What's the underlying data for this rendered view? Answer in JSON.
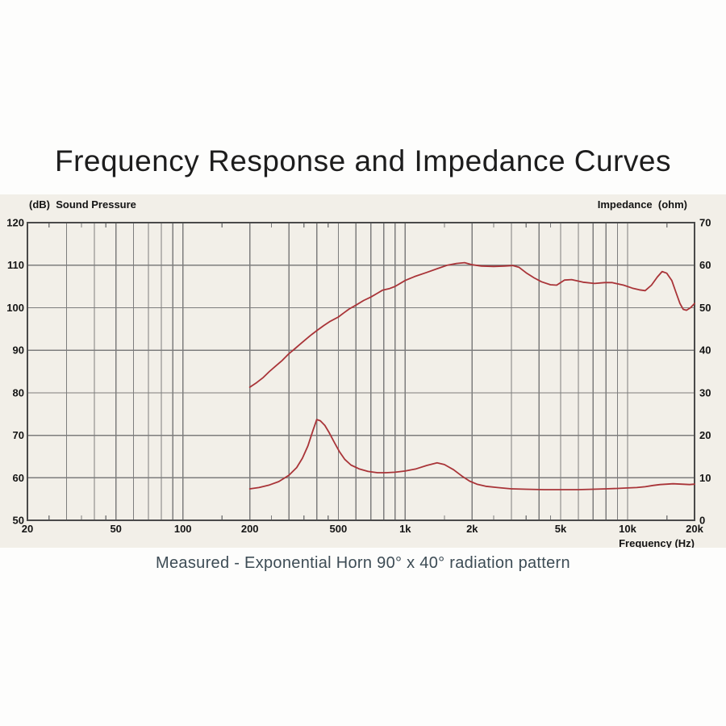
{
  "page_title": "Frequency Response and Impedance Curves",
  "caption": "Measured - Exponential Horn 90° x 40° radiation pattern",
  "colors": {
    "panel_bg": "#f2efe8",
    "curve": "#a93438",
    "grid": "#7d7d7d",
    "border": "#4a4a4a",
    "axis_text": "#141414",
    "title_text": "#1d1d1d",
    "caption_text": "#3d4c55"
  },
  "chart_data": {
    "type": "line",
    "title": "Frequency Response and Impedance Curves",
    "grid": "on",
    "legend": "none",
    "x_axis": {
      "title": "Frequency  (Hz)",
      "scale": "log",
      "min": 20,
      "max": 20000,
      "ticks": [
        {
          "f": 20,
          "label": "20"
        },
        {
          "f": 50,
          "label": "50"
        },
        {
          "f": 100,
          "label": "100"
        },
        {
          "f": 200,
          "label": "200"
        },
        {
          "f": 500,
          "label": "500"
        },
        {
          "f": 1000,
          "label": "1k"
        },
        {
          "f": 2000,
          "label": "2k"
        },
        {
          "f": 5000,
          "label": "5k"
        },
        {
          "f": 10000,
          "label": "10k"
        },
        {
          "f": 20000,
          "label": "20k"
        }
      ],
      "gridlines": [
        30,
        40,
        50,
        60,
        70,
        80,
        90,
        100,
        200,
        300,
        400,
        500,
        600,
        700,
        800,
        900,
        1000,
        2000,
        3000,
        4000,
        5000,
        6000,
        7000,
        8000,
        9000,
        10000
      ],
      "minor_ticks": [
        25,
        35,
        45,
        150,
        250,
        350,
        450,
        1500,
        2500,
        3500,
        4500,
        15000
      ]
    },
    "left_axis": {
      "header": "(dB)  Sound Pressure",
      "unit": "dB",
      "min": 50,
      "max": 120,
      "ticks": [
        120,
        110,
        100,
        90,
        80,
        70,
        60,
        50
      ]
    },
    "right_axis": {
      "header": "Impedance  (ohm)",
      "unit": "ohm",
      "min": 0,
      "max": 70,
      "ticks": [
        70,
        60,
        50,
        40,
        30,
        20,
        10,
        0
      ]
    },
    "series": [
      {
        "name": "sound-pressure-response",
        "axis": "left",
        "unit": "dB",
        "points": [
          [
            200,
            81.3
          ],
          [
            215,
            82.4
          ],
          [
            230,
            83.6
          ],
          [
            245,
            85.0
          ],
          [
            262,
            86.3
          ],
          [
            280,
            87.6
          ],
          [
            300,
            89.2
          ],
          [
            320,
            90.4
          ],
          [
            340,
            91.6
          ],
          [
            360,
            92.7
          ],
          [
            380,
            93.7
          ],
          [
            400,
            94.6
          ],
          [
            430,
            95.8
          ],
          [
            460,
            96.8
          ],
          [
            500,
            97.8
          ],
          [
            530,
            98.8
          ],
          [
            560,
            99.7
          ],
          [
            600,
            100.6
          ],
          [
            650,
            101.7
          ],
          [
            700,
            102.5
          ],
          [
            750,
            103.4
          ],
          [
            790,
            104.1
          ],
          [
            850,
            104.5
          ],
          [
            900,
            105.0
          ],
          [
            1000,
            106.4
          ],
          [
            1100,
            107.3
          ],
          [
            1250,
            108.3
          ],
          [
            1400,
            109.2
          ],
          [
            1550,
            110.0
          ],
          [
            1700,
            110.4
          ],
          [
            1850,
            110.6
          ],
          [
            2000,
            110.1
          ],
          [
            2200,
            109.8
          ],
          [
            2500,
            109.7
          ],
          [
            2800,
            109.8
          ],
          [
            3050,
            109.9
          ],
          [
            3250,
            109.5
          ],
          [
            3500,
            108.2
          ],
          [
            3800,
            107.0
          ],
          [
            4100,
            106.1
          ],
          [
            4500,
            105.4
          ],
          [
            4800,
            105.3
          ],
          [
            5200,
            106.5
          ],
          [
            5600,
            106.6
          ],
          [
            6300,
            106.0
          ],
          [
            7100,
            105.7
          ],
          [
            7900,
            105.9
          ],
          [
            8500,
            105.9
          ],
          [
            9600,
            105.3
          ],
          [
            10500,
            104.6
          ],
          [
            11300,
            104.2
          ],
          [
            12000,
            104.0
          ],
          [
            12800,
            105.3
          ],
          [
            13600,
            107.2
          ],
          [
            14300,
            108.5
          ],
          [
            15000,
            108.1
          ],
          [
            15800,
            106.4
          ],
          [
            16500,
            103.6
          ],
          [
            17200,
            101.0
          ],
          [
            17800,
            99.6
          ],
          [
            18400,
            99.4
          ],
          [
            19200,
            100.0
          ],
          [
            20000,
            101.0
          ]
        ]
      },
      {
        "name": "impedance",
        "axis": "right",
        "unit": "ohm",
        "points": [
          [
            200,
            7.4
          ],
          [
            220,
            7.7
          ],
          [
            245,
            8.3
          ],
          [
            270,
            9.1
          ],
          [
            300,
            10.6
          ],
          [
            325,
            12.4
          ],
          [
            345,
            14.6
          ],
          [
            365,
            17.5
          ],
          [
            385,
            21.2
          ],
          [
            400,
            23.7
          ],
          [
            415,
            23.4
          ],
          [
            435,
            22.3
          ],
          [
            455,
            20.6
          ],
          [
            480,
            18.3
          ],
          [
            505,
            16.2
          ],
          [
            535,
            14.3
          ],
          [
            570,
            13.0
          ],
          [
            620,
            12.1
          ],
          [
            680,
            11.5
          ],
          [
            750,
            11.2
          ],
          [
            820,
            11.2
          ],
          [
            900,
            11.3
          ],
          [
            1000,
            11.6
          ],
          [
            1120,
            12.1
          ],
          [
            1250,
            12.9
          ],
          [
            1390,
            13.5
          ],
          [
            1500,
            13.1
          ],
          [
            1650,
            11.9
          ],
          [
            1800,
            10.4
          ],
          [
            1950,
            9.2
          ],
          [
            2100,
            8.5
          ],
          [
            2300,
            8.0
          ],
          [
            2600,
            7.7
          ],
          [
            3000,
            7.4
          ],
          [
            3500,
            7.3
          ],
          [
            4200,
            7.2
          ],
          [
            5000,
            7.2
          ],
          [
            6000,
            7.2
          ],
          [
            7000,
            7.3
          ],
          [
            8000,
            7.4
          ],
          [
            9000,
            7.5
          ],
          [
            10000,
            7.6
          ],
          [
            11000,
            7.7
          ],
          [
            12000,
            7.9
          ],
          [
            13000,
            8.2
          ],
          [
            14000,
            8.4
          ],
          [
            15000,
            8.5
          ],
          [
            16000,
            8.6
          ],
          [
            17500,
            8.5
          ],
          [
            19000,
            8.4
          ],
          [
            20000,
            8.5
          ]
        ]
      }
    ]
  }
}
